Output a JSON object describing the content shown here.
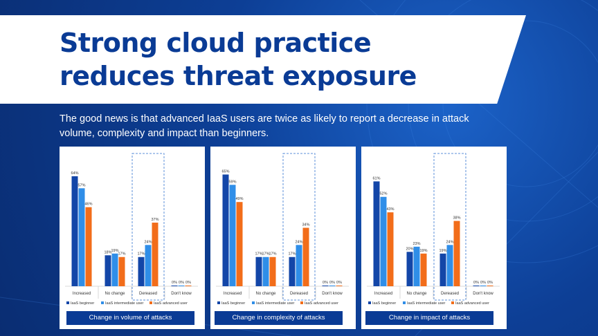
{
  "title": "Strong cloud practice reduces threat exposure",
  "subtitle": "The good news is that advanced IaaS users are twice as likely to report a decrease in attack volume, complexity and impact than beginners.",
  "colors": {
    "beginner": "#1346a8",
    "intermediate": "#2f8ee8",
    "advanced": "#f26d1a",
    "caption_bg": "#0a3b95"
  },
  "chart_data": [
    {
      "type": "bar",
      "title": "Change in volume of attacks",
      "categories": [
        "Increased",
        "No change",
        "Dereased",
        "Don't know"
      ],
      "series": [
        {
          "name": "IaaS beginner",
          "values": [
            64,
            18,
            17,
            0
          ]
        },
        {
          "name": "IaaS intermediate user",
          "values": [
            57,
            19,
            24,
            0
          ]
        },
        {
          "name": "IaaS advanced user",
          "values": [
            46,
            17,
            37,
            0
          ]
        }
      ],
      "ylim": [
        0,
        70
      ],
      "highlight_category": "Dereased",
      "legend": "bottom"
    },
    {
      "type": "bar",
      "title": "Change in complexity of attacks",
      "categories": [
        "Increased",
        "No change",
        "Dereased",
        "Don't know"
      ],
      "series": [
        {
          "name": "IaaS beginner",
          "values": [
            65,
            17,
            17,
            0
          ]
        },
        {
          "name": "IaaS intermediate user",
          "values": [
            59,
            17,
            24,
            0
          ]
        },
        {
          "name": "IaaS advanced user",
          "values": [
            49,
            17,
            34,
            0
          ]
        }
      ],
      "ylim": [
        0,
        70
      ],
      "highlight_category": "Dereased",
      "legend": "bottom"
    },
    {
      "type": "bar",
      "title": "Change in impact of attacks",
      "categories": [
        "Increased",
        "No change",
        "Dereased",
        "Don't know"
      ],
      "series": [
        {
          "name": "IaaS beginner",
          "values": [
            61,
            20,
            19,
            0
          ]
        },
        {
          "name": "IaaS intermediate user",
          "values": [
            52,
            23,
            24,
            0
          ]
        },
        {
          "name": "IaaS advanced user",
          "values": [
            43,
            19,
            38,
            0
          ]
        }
      ],
      "ylim": [
        0,
        70
      ],
      "highlight_category": "Dereased",
      "legend": "bottom"
    }
  ]
}
